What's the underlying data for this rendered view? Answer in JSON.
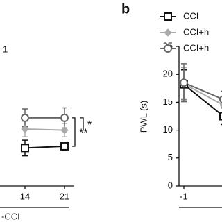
{
  "chart_data": [
    {
      "type": "line",
      "annotation": "1",
      "x_label": "-CCI",
      "categories": [
        "14",
        "21"
      ],
      "series": [
        {
          "color": "#111111",
          "marker": "square",
          "values": [
            6.8,
            7.1
          ],
          "errors": [
            1.4,
            0.7
          ]
        },
        {
          "color": "#aaaaaa",
          "marker": "diamond",
          "values": [
            10.2,
            10.0
          ],
          "errors": [
            1.4,
            1.2
          ]
        },
        {
          "color": "#666666",
          "marker": "circle",
          "values": [
            12.2,
            12.2
          ],
          "errors": [
            1.6,
            1.8
          ]
        }
      ],
      "significance": [
        "*",
        "**"
      ],
      "ylim": [
        0,
        25
      ]
    },
    {
      "type": "line",
      "panel_label": "b",
      "y_label": "PWL (s)",
      "categories": [
        "-1",
        null
      ],
      "series": [
        {
          "name": "CCI",
          "color": "#111111",
          "marker": "square",
          "values": [
            18.2,
            12.5
          ],
          "errors": [
            2.6,
            1.5
          ]
        },
        {
          "name": "CCI+h",
          "color": "#aaaaaa",
          "marker": "diamond",
          "values": [
            18.3,
            14.5
          ],
          "errors": [
            2.9,
            1.5
          ]
        },
        {
          "name": "CCI+h",
          "color": "#666666",
          "marker": "circle",
          "values": [
            18.5,
            15.5
          ],
          "errors": [
            3.4,
            1.5
          ]
        }
      ],
      "ylim": [
        0,
        25
      ],
      "yticks": [
        0,
        5,
        10,
        15,
        20,
        25
      ]
    }
  ]
}
